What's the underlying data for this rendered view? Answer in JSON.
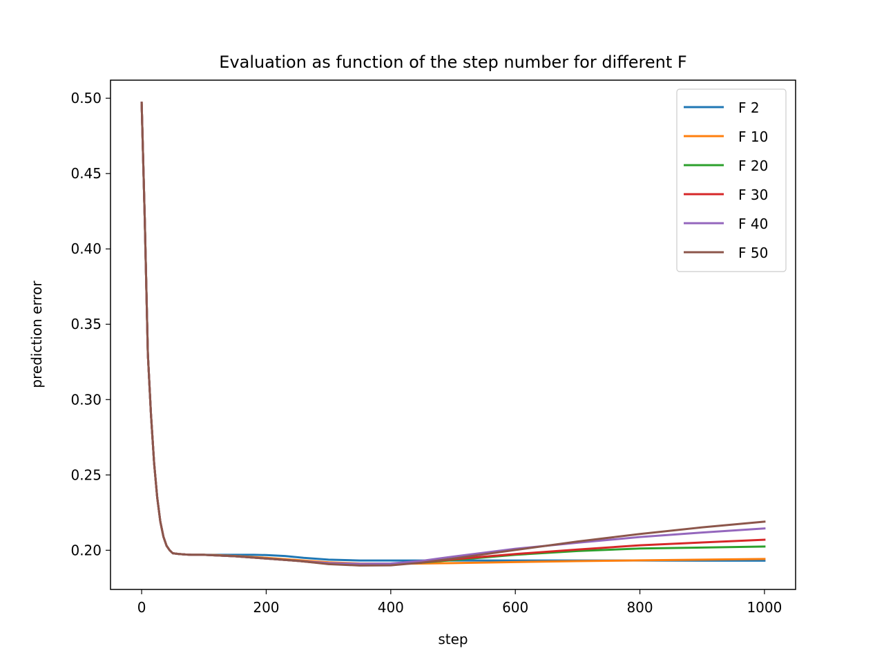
{
  "chart_data": {
    "type": "line",
    "title": "Evaluation as function of the step number for different F",
    "xlabel": "step",
    "ylabel": "prediction error",
    "xlim": [
      -50,
      1050
    ],
    "ylim": [
      0.174,
      0.512
    ],
    "xticks": [
      0,
      200,
      400,
      600,
      800,
      1000
    ],
    "xtick_labels": [
      "0",
      "200",
      "400",
      "600",
      "800",
      "1000"
    ],
    "yticks": [
      0.2,
      0.25,
      0.3,
      0.35,
      0.4,
      0.45,
      0.5
    ],
    "ytick_labels": [
      "0.20",
      "0.25",
      "0.30",
      "0.35",
      "0.40",
      "0.45",
      "0.50"
    ],
    "grid": false,
    "legend_position": "top-right",
    "series": [
      {
        "name": "F 2",
        "color": "#1f77b4",
        "x": [
          0,
          5,
          10,
          15,
          20,
          25,
          30,
          35,
          40,
          45,
          50,
          60,
          70,
          80,
          100,
          120,
          150,
          180,
          200,
          230,
          260,
          300,
          350,
          400,
          450,
          500,
          600,
          700,
          800,
          900,
          1000
        ],
        "y": [
          0.497,
          0.42,
          0.33,
          0.29,
          0.258,
          0.235,
          0.219,
          0.209,
          0.203,
          0.2,
          0.198,
          0.1975,
          0.1972,
          0.197,
          0.197,
          0.197,
          0.197,
          0.197,
          0.1968,
          0.1962,
          0.195,
          0.1938,
          0.1932,
          0.1932,
          0.1932,
          0.1932,
          0.1932,
          0.1932,
          0.1932,
          0.1931,
          0.1931
        ]
      },
      {
        "name": "F 10",
        "color": "#ff7f0e",
        "x": [
          0,
          5,
          10,
          15,
          20,
          25,
          30,
          35,
          40,
          45,
          50,
          60,
          70,
          80,
          100,
          120,
          150,
          200,
          250,
          300,
          350,
          400,
          450,
          500,
          600,
          700,
          800,
          900,
          1000
        ],
        "y": [
          0.497,
          0.42,
          0.33,
          0.29,
          0.258,
          0.235,
          0.219,
          0.209,
          0.203,
          0.2,
          0.198,
          0.1975,
          0.1972,
          0.197,
          0.197,
          0.1968,
          0.1962,
          0.195,
          0.1935,
          0.192,
          0.1912,
          0.191,
          0.1912,
          0.1915,
          0.1922,
          0.1928,
          0.1933,
          0.1938,
          0.1942
        ]
      },
      {
        "name": "F 20",
        "color": "#2ca02c",
        "x": [
          0,
          5,
          10,
          15,
          20,
          25,
          30,
          35,
          40,
          45,
          50,
          60,
          70,
          80,
          100,
          120,
          150,
          200,
          250,
          300,
          350,
          400,
          450,
          500,
          600,
          700,
          800,
          900,
          1000
        ],
        "y": [
          0.497,
          0.42,
          0.33,
          0.29,
          0.258,
          0.235,
          0.219,
          0.209,
          0.203,
          0.2,
          0.198,
          0.1975,
          0.1972,
          0.197,
          0.197,
          0.1966,
          0.196,
          0.1945,
          0.193,
          0.1912,
          0.1905,
          0.1906,
          0.1918,
          0.1935,
          0.197,
          0.1995,
          0.2012,
          0.2018,
          0.2025
        ]
      },
      {
        "name": "F 30",
        "color": "#d62728",
        "x": [
          0,
          5,
          10,
          15,
          20,
          25,
          30,
          35,
          40,
          45,
          50,
          60,
          70,
          80,
          100,
          120,
          150,
          200,
          250,
          300,
          350,
          400,
          450,
          500,
          600,
          700,
          800,
          900,
          1000
        ],
        "y": [
          0.497,
          0.42,
          0.33,
          0.29,
          0.258,
          0.235,
          0.219,
          0.209,
          0.203,
          0.2,
          0.198,
          0.1975,
          0.1972,
          0.197,
          0.197,
          0.1966,
          0.196,
          0.1945,
          0.193,
          0.191,
          0.1902,
          0.1905,
          0.192,
          0.194,
          0.1975,
          0.2005,
          0.2033,
          0.2052,
          0.207
        ]
      },
      {
        "name": "F 40",
        "color": "#9467bd",
        "x": [
          0,
          5,
          10,
          15,
          20,
          25,
          30,
          35,
          40,
          45,
          50,
          60,
          70,
          80,
          100,
          120,
          150,
          200,
          250,
          300,
          350,
          400,
          450,
          500,
          600,
          700,
          800,
          900,
          1000
        ],
        "y": [
          0.497,
          0.42,
          0.33,
          0.29,
          0.258,
          0.235,
          0.219,
          0.209,
          0.203,
          0.2,
          0.198,
          0.1975,
          0.1972,
          0.197,
          0.197,
          0.1966,
          0.196,
          0.1945,
          0.193,
          0.1915,
          0.191,
          0.1912,
          0.193,
          0.1958,
          0.201,
          0.205,
          0.2088,
          0.2118,
          0.2145
        ]
      },
      {
        "name": "F 50",
        "color": "#8c564b",
        "x": [
          0,
          5,
          10,
          15,
          20,
          25,
          30,
          35,
          40,
          45,
          50,
          60,
          70,
          80,
          100,
          120,
          150,
          200,
          250,
          300,
          350,
          400,
          450,
          500,
          600,
          700,
          800,
          900,
          1000
        ],
        "y": [
          0.497,
          0.42,
          0.33,
          0.29,
          0.258,
          0.235,
          0.219,
          0.209,
          0.203,
          0.2,
          0.198,
          0.1975,
          0.1972,
          0.197,
          0.197,
          0.1966,
          0.196,
          0.1945,
          0.193,
          0.1908,
          0.1899,
          0.19,
          0.1918,
          0.1945,
          0.2002,
          0.2058,
          0.2108,
          0.2152,
          0.219
        ]
      }
    ]
  }
}
